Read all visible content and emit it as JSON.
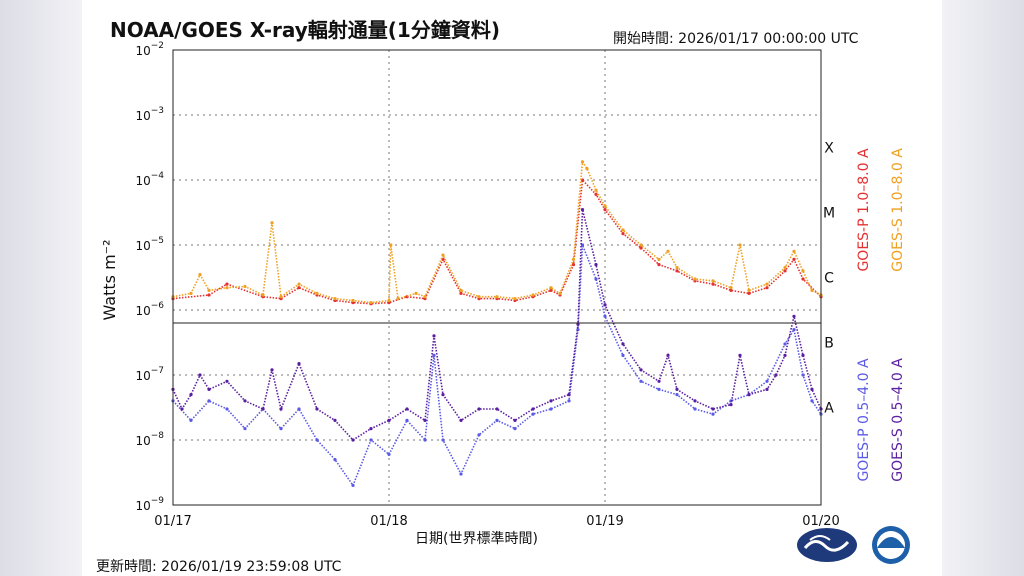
{
  "header": {
    "title": "NOAA/GOES X-ray輻射通量(1分鐘資料)",
    "start_label": "開始時間:",
    "start_time": "2026/01/17 00:00:00 UTC"
  },
  "footer": {
    "updated_label": "更新時間:",
    "updated_time": "2026/01/19 23:59:08 UTC"
  },
  "chart_data": {
    "type": "scatter",
    "ylabel": "Watts m⁻²",
    "xlabel": "日期(世界標準時間)",
    "yscale": "log",
    "ylim": [
      1e-09,
      0.01
    ],
    "y_ticks": [
      {
        "exp": -9,
        "label": "10",
        "sup": "−9"
      },
      {
        "exp": -8,
        "label": "10",
        "sup": "−8"
      },
      {
        "exp": -7,
        "label": "10",
        "sup": "−7"
      },
      {
        "exp": -6,
        "label": "10",
        "sup": "−6"
      },
      {
        "exp": -5,
        "label": "10",
        "sup": "−5"
      },
      {
        "exp": -4,
        "label": "10",
        "sup": "−4"
      },
      {
        "exp": -3,
        "label": "10",
        "sup": "−3"
      },
      {
        "exp": -2,
        "label": "10",
        "sup": "−2"
      }
    ],
    "x_ticks": [
      {
        "hours": 0,
        "label": "01/17"
      },
      {
        "hours": 24,
        "label": "01/18"
      },
      {
        "hours": 48,
        "label": "01/19"
      },
      {
        "hours": 72,
        "label": "01/20"
      }
    ],
    "x_range_hours": [
      0,
      72
    ],
    "class_levels": [
      {
        "label": "X",
        "exp": -3.5
      },
      {
        "label": "M",
        "exp": -4.5
      },
      {
        "label": "C",
        "exp": -5.5
      },
      {
        "label": "B",
        "exp": -6.5
      },
      {
        "label": "A",
        "exp": -7.5
      }
    ],
    "grid": true,
    "legend_position": "right, rotated",
    "series": [
      {
        "name": "GOES-P 1.0–8.0 A",
        "color": "#e53030",
        "points": [
          [
            0,
            1.5e-06
          ],
          [
            4,
            1.7e-06
          ],
          [
            6,
            2.5e-06
          ],
          [
            10,
            1.6e-06
          ],
          [
            12,
            1.5e-06
          ],
          [
            14,
            2.2e-06
          ],
          [
            16,
            1.7e-06
          ],
          [
            18,
            1.4e-06
          ],
          [
            20,
            1.3e-06
          ],
          [
            22,
            1.25e-06
          ],
          [
            24,
            1.3e-06
          ],
          [
            26,
            1.6e-06
          ],
          [
            28,
            1.5e-06
          ],
          [
            30,
            6e-06
          ],
          [
            32,
            1.8e-06
          ],
          [
            34,
            1.5e-06
          ],
          [
            36,
            1.5e-06
          ],
          [
            38,
            1.4e-06
          ],
          [
            40,
            1.6e-06
          ],
          [
            42,
            2e-06
          ],
          [
            43,
            1.7e-06
          ],
          [
            44.5,
            5e-06
          ],
          [
            45.5,
            0.0001
          ],
          [
            47,
            6e-05
          ],
          [
            48,
            3.5e-05
          ],
          [
            50,
            1.5e-05
          ],
          [
            52,
            9e-06
          ],
          [
            54,
            5e-06
          ],
          [
            56,
            4e-06
          ],
          [
            58,
            2.8e-06
          ],
          [
            60,
            2.5e-06
          ],
          [
            62,
            2e-06
          ],
          [
            64,
            1.8e-06
          ],
          [
            66,
            2.2e-06
          ],
          [
            68,
            4e-06
          ],
          [
            69,
            6e-06
          ],
          [
            70,
            3e-06
          ],
          [
            72,
            1.6e-06
          ]
        ]
      },
      {
        "name": "GOES-S 1.0–8.0 A",
        "color": "#f0a020",
        "points": [
          [
            0,
            1.6e-06
          ],
          [
            2,
            1.8e-06
          ],
          [
            3,
            3.5e-06
          ],
          [
            4,
            2e-06
          ],
          [
            6,
            2.2e-06
          ],
          [
            8,
            2.3e-06
          ],
          [
            10,
            1.7e-06
          ],
          [
            11,
            2.2e-05
          ],
          [
            12,
            1.6e-06
          ],
          [
            14,
            2.5e-06
          ],
          [
            16,
            1.8e-06
          ],
          [
            18,
            1.5e-06
          ],
          [
            20,
            1.4e-06
          ],
          [
            22,
            1.3e-06
          ],
          [
            24,
            1.4e-06
          ],
          [
            24.2,
            1e-05
          ],
          [
            25,
            1.5e-06
          ],
          [
            27,
            1.8e-06
          ],
          [
            28,
            1.6e-06
          ],
          [
            30,
            7e-06
          ],
          [
            32,
            2e-06
          ],
          [
            34,
            1.6e-06
          ],
          [
            36,
            1.6e-06
          ],
          [
            38,
            1.5e-06
          ],
          [
            40,
            1.7e-06
          ],
          [
            42,
            2.2e-06
          ],
          [
            43,
            1.8e-06
          ],
          [
            44.5,
            6e-06
          ],
          [
            45.5,
            0.00019
          ],
          [
            46,
            0.00015
          ],
          [
            47,
            7e-05
          ],
          [
            48,
            4e-05
          ],
          [
            50,
            1.7e-05
          ],
          [
            52,
            1e-05
          ],
          [
            54,
            6e-06
          ],
          [
            55,
            8e-06
          ],
          [
            56,
            4.5e-06
          ],
          [
            58,
            3e-06
          ],
          [
            60,
            2.8e-06
          ],
          [
            62,
            2.2e-06
          ],
          [
            63,
            1e-05
          ],
          [
            64,
            2e-06
          ],
          [
            66,
            2.5e-06
          ],
          [
            68,
            4.5e-06
          ],
          [
            69,
            8e-06
          ],
          [
            70,
            4e-06
          ],
          [
            71,
            2e-06
          ],
          [
            72,
            1.7e-06
          ]
        ]
      },
      {
        "name": "GOES-P 0.5–4.0 A",
        "color": "#5a5ae6",
        "points": [
          [
            0,
            4e-08
          ],
          [
            2,
            2e-08
          ],
          [
            4,
            4e-08
          ],
          [
            6,
            3e-08
          ],
          [
            8,
            1.5e-08
          ],
          [
            10,
            3e-08
          ],
          [
            12,
            1.5e-08
          ],
          [
            14,
            3e-08
          ],
          [
            16,
            1e-08
          ],
          [
            18,
            5e-09
          ],
          [
            20,
            2e-09
          ],
          [
            22,
            1e-08
          ],
          [
            24,
            6e-09
          ],
          [
            26,
            2e-08
          ],
          [
            28,
            1e-08
          ],
          [
            29,
            2e-07
          ],
          [
            30,
            1e-08
          ],
          [
            32,
            3e-09
          ],
          [
            34,
            1.2e-08
          ],
          [
            36,
            2e-08
          ],
          [
            38,
            1.5e-08
          ],
          [
            40,
            2.5e-08
          ],
          [
            42,
            3e-08
          ],
          [
            44,
            4e-08
          ],
          [
            45,
            5e-07
          ],
          [
            45.5,
            1e-05
          ],
          [
            47,
            3e-06
          ],
          [
            48,
            8e-07
          ],
          [
            50,
            2e-07
          ],
          [
            52,
            8e-08
          ],
          [
            54,
            6e-08
          ],
          [
            56,
            5e-08
          ],
          [
            58,
            3e-08
          ],
          [
            60,
            2.5e-08
          ],
          [
            62,
            4e-08
          ],
          [
            64,
            5e-08
          ],
          [
            66,
            8e-08
          ],
          [
            68,
            3e-07
          ],
          [
            69,
            5e-07
          ],
          [
            70,
            1e-07
          ],
          [
            71,
            4e-08
          ],
          [
            72,
            2.5e-08
          ]
        ]
      },
      {
        "name": "GOES-S 0.5–4.0 A",
        "color": "#5a1ea0",
        "points": [
          [
            0,
            6e-08
          ],
          [
            1,
            3e-08
          ],
          [
            2,
            5e-08
          ],
          [
            3,
            1e-07
          ],
          [
            4,
            6e-08
          ],
          [
            6,
            8e-08
          ],
          [
            8,
            4e-08
          ],
          [
            10,
            3e-08
          ],
          [
            11,
            1.2e-07
          ],
          [
            12,
            3e-08
          ],
          [
            14,
            1.5e-07
          ],
          [
            16,
            3e-08
          ],
          [
            18,
            2e-08
          ],
          [
            20,
            1e-08
          ],
          [
            22,
            1.5e-08
          ],
          [
            24,
            2e-08
          ],
          [
            26,
            3e-08
          ],
          [
            28,
            2e-08
          ],
          [
            29,
            4e-07
          ],
          [
            30,
            5e-08
          ],
          [
            32,
            2e-08
          ],
          [
            34,
            3e-08
          ],
          [
            36,
            3e-08
          ],
          [
            38,
            2e-08
          ],
          [
            40,
            3e-08
          ],
          [
            42,
            4e-08
          ],
          [
            44,
            5e-08
          ],
          [
            45,
            6e-07
          ],
          [
            45.5,
            3.5e-05
          ],
          [
            47,
            5e-06
          ],
          [
            48,
            1.2e-06
          ],
          [
            50,
            3e-07
          ],
          [
            52,
            1.2e-07
          ],
          [
            54,
            8e-08
          ],
          [
            55,
            2e-07
          ],
          [
            56,
            6e-08
          ],
          [
            58,
            4e-08
          ],
          [
            60,
            3e-08
          ],
          [
            62,
            3.5e-08
          ],
          [
            63,
            2e-07
          ],
          [
            64,
            5e-08
          ],
          [
            66,
            6e-08
          ],
          [
            67,
            1e-07
          ],
          [
            68,
            2e-07
          ],
          [
            69,
            8e-07
          ],
          [
            70,
            2e-07
          ],
          [
            71,
            6e-08
          ],
          [
            72,
            3e-08
          ]
        ]
      }
    ]
  },
  "logos": {
    "left_logo": "cwa-logo",
    "right_logo": "noaa-logo"
  }
}
